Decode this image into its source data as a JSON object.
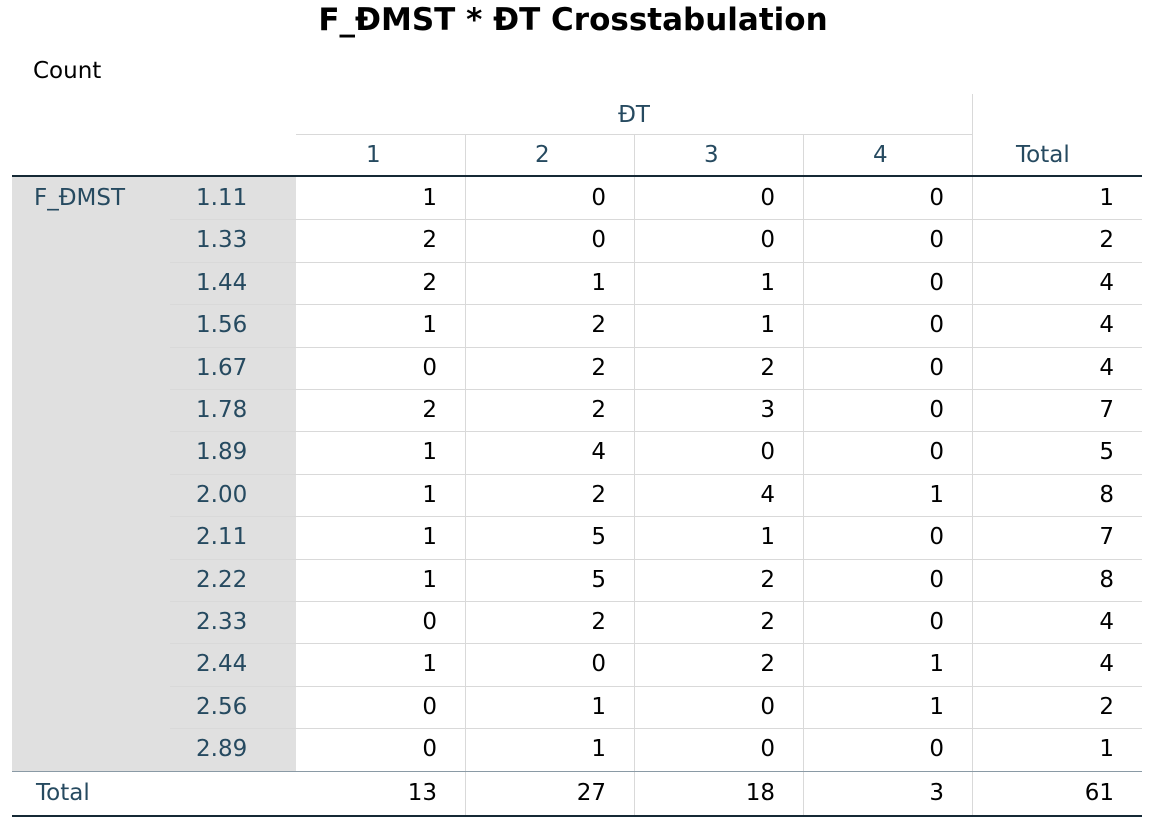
{
  "title": "F_ĐMST * ĐT Crosstabulation",
  "subtitle": "Count",
  "table": {
    "column_variable": "ĐT",
    "row_variable": "F_ĐMST",
    "columns": [
      "1",
      "2",
      "3",
      "4",
      "Total"
    ],
    "rows": [
      {
        "label": "1.11",
        "values": [
          1,
          0,
          0,
          0,
          1
        ]
      },
      {
        "label": "1.33",
        "values": [
          2,
          0,
          0,
          0,
          2
        ]
      },
      {
        "label": "1.44",
        "values": [
          2,
          1,
          1,
          0,
          4
        ]
      },
      {
        "label": "1.56",
        "values": [
          1,
          2,
          1,
          0,
          4
        ]
      },
      {
        "label": "1.67",
        "values": [
          0,
          2,
          2,
          0,
          4
        ]
      },
      {
        "label": "1.78",
        "values": [
          2,
          2,
          3,
          0,
          7
        ]
      },
      {
        "label": "1.89",
        "values": [
          1,
          4,
          0,
          0,
          5
        ]
      },
      {
        "label": "2.00",
        "values": [
          1,
          2,
          4,
          1,
          8
        ]
      },
      {
        "label": "2.11",
        "values": [
          1,
          5,
          1,
          0,
          7
        ]
      },
      {
        "label": "2.22",
        "values": [
          1,
          5,
          2,
          0,
          8
        ]
      },
      {
        "label": "2.33",
        "values": [
          0,
          2,
          2,
          0,
          4
        ]
      },
      {
        "label": "2.44",
        "values": [
          1,
          0,
          2,
          1,
          4
        ]
      },
      {
        "label": "2.56",
        "values": [
          0,
          1,
          0,
          1,
          2
        ]
      },
      {
        "label": "2.89",
        "values": [
          0,
          1,
          0,
          0,
          1
        ]
      }
    ],
    "total": {
      "label": "Total",
      "values": [
        13,
        27,
        18,
        3,
        61
      ]
    }
  }
}
